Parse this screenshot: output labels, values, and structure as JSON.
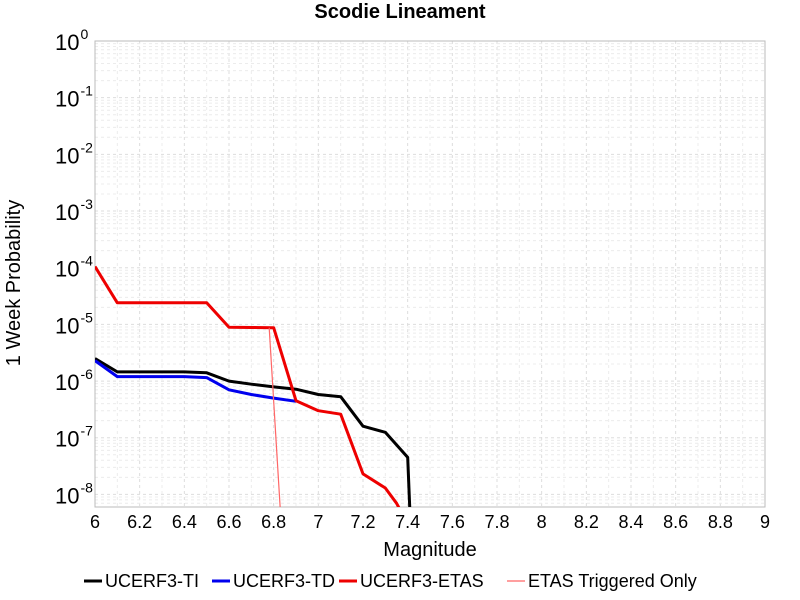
{
  "chart_data": {
    "type": "line",
    "title": "Scodie Lineament",
    "xlabel": "Magnitude",
    "ylabel": "1 Week Probability",
    "xlim": [
      6,
      9
    ],
    "ylim": [
      6e-09,
      1
    ],
    "yscale": "log",
    "grid": true,
    "legend_position": "bottom",
    "x_ticks": [
      "6",
      "6.2",
      "6.4",
      "6.6",
      "6.8",
      "7",
      "7.2",
      "7.4",
      "7.6",
      "7.8",
      "8",
      "8.2",
      "8.4",
      "8.6",
      "8.8",
      "9"
    ],
    "y_ticks": [
      {
        "base": "10",
        "exp": "0"
      },
      {
        "base": "10",
        "exp": "-1"
      },
      {
        "base": "10",
        "exp": "-2"
      },
      {
        "base": "10",
        "exp": "-3"
      },
      {
        "base": "10",
        "exp": "-4"
      },
      {
        "base": "10",
        "exp": "-5"
      },
      {
        "base": "10",
        "exp": "-6"
      },
      {
        "base": "10",
        "exp": "-7"
      },
      {
        "base": "10",
        "exp": "-8"
      }
    ],
    "series": [
      {
        "name": "UCERF3-TI",
        "color": "#000000",
        "width": 3,
        "x": [
          6.0,
          6.1,
          6.2,
          6.3,
          6.4,
          6.5,
          6.6,
          6.7,
          6.8,
          6.9,
          7.0,
          7.1,
          7.2,
          7.3,
          7.4,
          7.41
        ],
        "y": [
          2.5e-06,
          1.45e-06,
          1.45e-06,
          1.45e-06,
          1.45e-06,
          1.4e-06,
          1e-06,
          8.8e-07,
          7.9e-07,
          7.2e-07,
          5.8e-07,
          5.3e-07,
          1.6e-07,
          1.25e-07,
          4.5e-08,
          5e-09
        ]
      },
      {
        "name": "UCERF3-TD",
        "color": "#0000ee",
        "width": 3,
        "x": [
          6.0,
          6.1,
          6.2,
          6.3,
          6.4,
          6.5,
          6.6,
          6.7,
          6.8,
          6.9
        ],
        "y": [
          2.3e-06,
          1.2e-06,
          1.2e-06,
          1.2e-06,
          1.2e-06,
          1.15e-06,
          7e-07,
          5.8e-07,
          5e-07,
          4.4e-07
        ]
      },
      {
        "name": "UCERF3-ETAS",
        "color": "#ee0000",
        "width": 3,
        "x": [
          6.0,
          6.1,
          6.2,
          6.3,
          6.4,
          6.5,
          6.6,
          6.7,
          6.8,
          6.9,
          7.0,
          7.1,
          7.2,
          7.3,
          7.35,
          7.37
        ],
        "y": [
          0.000105,
          2.4e-05,
          2.4e-05,
          2.4e-05,
          2.4e-05,
          2.4e-05,
          8.9e-06,
          8.8e-06,
          8.7e-06,
          4.5e-07,
          3e-07,
          2.6e-07,
          2.3e-08,
          1.3e-08,
          7e-09,
          5e-09
        ]
      },
      {
        "name": "ETAS Triggered Only",
        "color": "#ff6666",
        "width": 1.2,
        "x": [
          6.78,
          6.83
        ],
        "y": [
          8.7e-06,
          5e-09
        ]
      }
    ]
  }
}
